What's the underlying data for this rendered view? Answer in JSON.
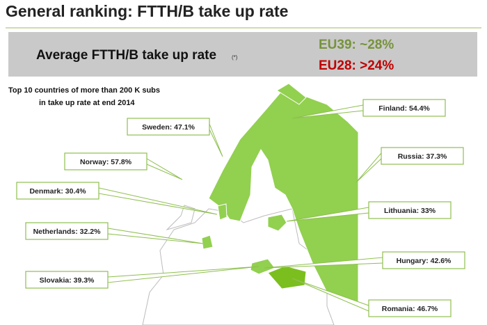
{
  "header": {
    "title": "General ranking: FTTH/B take up rate"
  },
  "banner": {
    "heading": "Average FTTH/B take up rate",
    "footnote": "(*)",
    "eu39": "EU39: ~28%",
    "eu28": "EU28: >24%"
  },
  "subtitle": [
    "Top 10 countries of more than 200 K subs",
    "in take up rate at end 2014"
  ],
  "callouts": [
    {
      "label": "Finland: 54.4%"
    },
    {
      "label": "Sweden: 47.1%"
    },
    {
      "label": "Norway: 57.8%"
    },
    {
      "label": "Russia: 37.3%"
    },
    {
      "label": "Denmark: 30.4%"
    },
    {
      "label": "Lithuania: 33%"
    },
    {
      "label": "Netherlands: 32.2%"
    },
    {
      "label": "Hungary: 42.6%"
    },
    {
      "label": "Slovakia: 39.3%"
    },
    {
      "label": "Romania: 46.7%"
    }
  ]
}
